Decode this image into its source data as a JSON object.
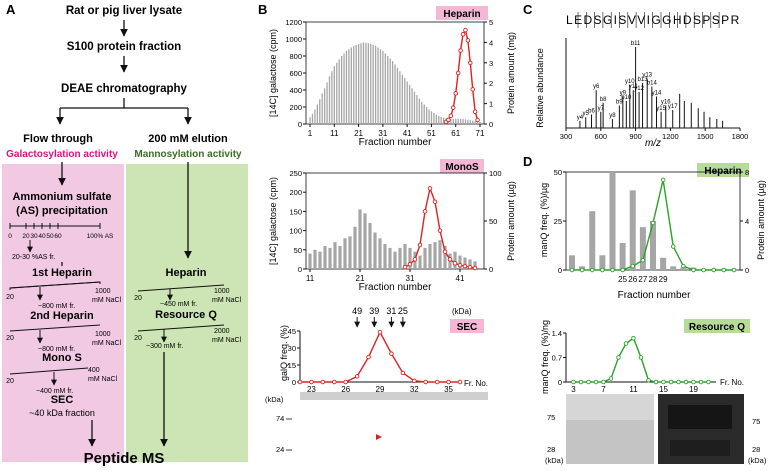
{
  "panel_letters": {
    "a": "A",
    "b": "B",
    "c": "C",
    "d": "D"
  },
  "flow": {
    "step1": "Rat or pig liver lysate",
    "step2": "S100 protein fraction",
    "step3": "DEAE chromatography",
    "branch_left": "Flow through",
    "branch_right": "200 mM elution",
    "activity_left": "Galactosylation activity",
    "activity_right": "Mannosylation activity",
    "as_title_1": "Ammonium sulfate",
    "as_title_2": "(AS) precipitation",
    "as_ticks": [
      "0",
      "20",
      "30",
      "40",
      "50",
      "60",
      "100% AS"
    ],
    "as_fraction": "20-30 %AS fr.",
    "heparin1": "1st Heparin",
    "heparin2": "2nd Heparin",
    "monos": "Mono S",
    "sec": "SEC",
    "sec_fraction": "~40 kDa fraction",
    "heparin_right": "Heparin",
    "resourceq": "Resource Q",
    "grad_start": "20",
    "grad_end_1000": "1000",
    "grad_end_400": "400",
    "grad_end_2000": "2000",
    "grad_unit": "mM NaCl",
    "elute_800": "~800 mM fr.",
    "elute_400": "~400 mM fr.",
    "elute_450": "~450 mM fr.",
    "elute_300": "~300 mM fr.",
    "final": "Peptide MS"
  },
  "panel_b": {
    "heparin_tag": "Heparin",
    "monos_tag": "MonoS",
    "sec_tag": "SEC",
    "ylabel_left": "[14C] galactose (cpm)",
    "ylabel_right_mg": "Protein amount (mg)",
    "ylabel_right_ug": "Protein amount (µg)",
    "xlabel": "Fraction number",
    "sec_ylabel": "galQ freq. (%)",
    "fr_no": "Fr. No.",
    "kda_unit": "(kDa)",
    "gel_kda": "(kDa)",
    "gel_markers": [
      "74",
      "24"
    ]
  },
  "panel_c": {
    "sequence": "LEDSGISVVIGGHDSPSPR",
    "ylabel": "Relative abundance",
    "xlabel": "m/z",
    "x_ticks": [
      "300",
      "600",
      "900",
      "1200",
      "1500",
      "1800"
    ]
  },
  "panel_d": {
    "heparin_tag": "Heparin",
    "resourceq_tag": "Resource Q",
    "ylabel_top": "manQ freq. (%)/µg",
    "ylabel_right": "Protein amount (µg)",
    "xlabel": "Fraction number",
    "ylabel_bottom": "manQ freq. (%)/ng",
    "fr_no": "Fr. No.",
    "gel_left_markers": [
      "75",
      "28"
    ],
    "gel_right_markers": [
      "75",
      "28"
    ],
    "kda_unit": "(kDa)"
  },
  "colors": {
    "pink_box": "#f2c9e3",
    "green_box": "#cde4b5",
    "galactosylation": "#e0107a",
    "mannosylation": "#3b6e22",
    "red_line": "#e02020",
    "green_line": "#2aa32a",
    "bars": "#a6a6a6",
    "tag_pink": "#f4b8d6",
    "tag_green": "#b7dc9a"
  },
  "chart_data": [
    {
      "type": "bar",
      "id": "b-heparin",
      "title": "Heparin",
      "xlabel": "Fraction number",
      "ylabel": "[14C] galactose (cpm)",
      "y2label": "Protein amount (mg)",
      "x_ticks": [
        1,
        11,
        21,
        31,
        41,
        51,
        61,
        71
      ],
      "xlim": [
        1,
        71
      ],
      "ylim": [
        0,
        1200
      ],
      "y_ticks": [
        0,
        200,
        400,
        600,
        800,
        1000,
        1200
      ],
      "y2lim": [
        0,
        5
      ],
      "y2_ticks": [
        0,
        1,
        2,
        3,
        4,
        5
      ],
      "series": [
        {
          "name": "[14C] galactose",
          "kind": "bar",
          "x": [
            1,
            2,
            3,
            4,
            5,
            6,
            7,
            8,
            9,
            10,
            11,
            12,
            13,
            14,
            15,
            16,
            17,
            18,
            19,
            20,
            21,
            22,
            23,
            24,
            25,
            26,
            27,
            28,
            29,
            30,
            31,
            32,
            33,
            34,
            35,
            36,
            37,
            38,
            39,
            40,
            41,
            42,
            43,
            44,
            45,
            46,
            47,
            48,
            49,
            50,
            51,
            52,
            53,
            54,
            55,
            56,
            57,
            58,
            59,
            60,
            61,
            62,
            63,
            64,
            65,
            66,
            67,
            68,
            69,
            70,
            71
          ],
          "values": [
            80,
            120,
            170,
            230,
            290,
            360,
            420,
            490,
            560,
            620,
            680,
            720,
            760,
            800,
            830,
            860,
            880,
            900,
            920,
            930,
            940,
            950,
            960,
            955,
            950,
            945,
            930,
            920,
            900,
            880,
            860,
            830,
            800,
            770,
            740,
            700,
            660,
            620,
            580,
            540,
            500,
            460,
            420,
            380,
            340,
            300,
            260,
            230,
            200,
            170,
            150,
            130,
            110,
            95,
            85,
            75,
            70,
            65,
            60,
            58,
            60,
            62,
            60,
            58,
            55,
            50,
            45,
            40,
            35,
            30,
            25
          ]
        },
        {
          "name": "Protein amount",
          "kind": "line",
          "axis": "y2",
          "x": [
            57,
            58,
            59,
            60,
            61,
            62,
            63,
            64,
            65,
            66,
            67,
            68,
            69,
            70
          ],
          "values": [
            0.1,
            0.2,
            0.4,
            0.8,
            1.5,
            2.5,
            3.6,
            4.4,
            4.6,
            4.1,
            3.0,
            1.7,
            0.6,
            0.2
          ]
        }
      ]
    },
    {
      "type": "bar",
      "id": "b-monos",
      "title": "MonoS",
      "xlabel": "Fraction number",
      "ylabel": "[14C] galactose (cpm)",
      "y2label": "Protein amount (µg)",
      "x_ticks": [
        11,
        21,
        31,
        41
      ],
      "xlim": [
        11,
        45
      ],
      "ylim": [
        0,
        250
      ],
      "y_ticks": [
        0,
        50,
        100,
        150,
        200,
        250
      ],
      "y2lim": [
        0,
        100
      ],
      "y2_ticks": [
        0,
        50,
        100
      ],
      "series": [
        {
          "name": "[14C] galactose",
          "kind": "bar",
          "x": [
            11,
            12,
            13,
            14,
            15,
            16,
            17,
            18,
            19,
            20,
            21,
            22,
            23,
            24,
            25,
            26,
            27,
            28,
            29,
            30,
            31,
            32,
            33,
            34,
            35,
            36,
            37,
            38,
            39,
            40,
            41,
            42,
            43,
            44
          ],
          "values": [
            40,
            50,
            45,
            60,
            55,
            70,
            60,
            80,
            85,
            110,
            155,
            145,
            120,
            95,
            80,
            65,
            55,
            45,
            55,
            65,
            55,
            45,
            35,
            55,
            65,
            70,
            75,
            60,
            40,
            45,
            35,
            30,
            25,
            20
          ]
        },
        {
          "name": "Protein amount",
          "kind": "line",
          "axis": "y2",
          "x": [
            30,
            31,
            32,
            33,
            34,
            35,
            36,
            37,
            38,
            39,
            40,
            41,
            42,
            43,
            44
          ],
          "values": [
            2,
            5,
            10,
            25,
            60,
            84,
            70,
            40,
            18,
            10,
            6,
            4,
            3,
            2,
            1
          ]
        }
      ]
    },
    {
      "type": "line",
      "id": "b-sec",
      "title": "SEC",
      "ylabel": "galQ freq. (%)",
      "xlabel": "Fr. No.",
      "x_ticks": [
        23,
        26,
        29,
        32,
        35
      ],
      "xlim": [
        22,
        36
      ],
      "ylim": [
        0,
        45
      ],
      "y_ticks": [
        0,
        15,
        30,
        45
      ],
      "markers_kda": [
        {
          "label": "49",
          "x": 27
        },
        {
          "label": "39",
          "x": 28.5
        },
        {
          "label": "31",
          "x": 30
        },
        {
          "label": "25",
          "x": 31
        }
      ],
      "series": [
        {
          "name": "galQ",
          "x": [
            22,
            23,
            24,
            25,
            26,
            27,
            28,
            29,
            30,
            31,
            32,
            33,
            34,
            35,
            36
          ],
          "values": [
            0,
            0,
            0,
            0,
            0,
            5,
            22,
            44,
            25,
            8,
            1,
            0,
            0,
            0,
            0
          ]
        }
      ]
    },
    {
      "type": "bar",
      "id": "c-ms",
      "title": "",
      "xlabel": "m/z",
      "ylabel": "Relative abundance",
      "x_ticks": [
        300,
        600,
        900,
        1200,
        1500,
        1800
      ],
      "xlim": [
        300,
        1800
      ],
      "ylim": [
        0,
        100
      ],
      "series": [
        {
          "name": "peaks",
          "x": [
            420,
            470,
            520,
            560,
            600,
            620,
            700,
            760,
            790,
            820,
            850,
            880,
            900,
            930,
            960,
            1000,
            1040,
            1080,
            1120,
            1160,
            1220,
            1280,
            1320,
            1380,
            1440,
            1490,
            1540,
            1600,
            1650
          ],
          "values": [
            8,
            12,
            15,
            42,
            18,
            28,
            10,
            25,
            35,
            30,
            48,
            42,
            90,
            40,
            50,
            55,
            46,
            35,
            18,
            25,
            20,
            38,
            30,
            28,
            22,
            18,
            12,
            10,
            8
          ]
        }
      ],
      "labels": [
        "y4",
        "y5",
        "b6",
        "y6",
        "y7",
        "b8",
        "y8",
        "b9",
        "y9",
        "b10",
        "y10",
        "y11",
        "b11",
        "y12",
        "b13",
        "y13",
        "b14",
        "y14",
        "y15",
        "y16",
        "y17"
      ]
    },
    {
      "type": "bar",
      "id": "d-heparin",
      "title": "Heparin",
      "xlabel": "Fraction number",
      "ylabel": "manQ freq. (%)/µg",
      "y2label": "Protein amount (µg)",
      "x_ticks": [
        25,
        26,
        27,
        28,
        29
      ],
      "ylim": [
        0,
        50
      ],
      "y_ticks": [
        0,
        25,
        50
      ],
      "y2lim": [
        0,
        8
      ],
      "y2_ticks": [
        0,
        4,
        8
      ],
      "categories": [
        20,
        21,
        22,
        23,
        24,
        25,
        26,
        27,
        28,
        29,
        30,
        31,
        32,
        33,
        34,
        35,
        36
      ],
      "series": [
        {
          "name": "Protein amount",
          "kind": "bar",
          "axis": "y2",
          "values": [
            1.2,
            0.3,
            4.8,
            1.2,
            8.0,
            2.2,
            6.5,
            3.5,
            4.0,
            1.0,
            0.3,
            0.2,
            0.2,
            0.1,
            0.1,
            0.1,
            0.1
          ]
        },
        {
          "name": "manQ freq.",
          "kind": "line",
          "values": [
            0,
            0,
            0,
            0,
            0,
            0,
            2,
            5,
            24,
            46,
            12,
            2,
            0,
            0,
            0,
            0,
            0
          ]
        }
      ]
    },
    {
      "type": "line",
      "id": "d-resourceq",
      "title": "Resource Q",
      "xlabel": "Fr. No.",
      "ylabel": "manQ freq. (%)/ng",
      "x_ticks": [
        3,
        7,
        11,
        15,
        19
      ],
      "xlim": [
        2,
        22
      ],
      "ylim": [
        0,
        1.4
      ],
      "y_ticks": [
        0,
        0.7,
        1.4
      ],
      "series": [
        {
          "name": "manQ",
          "x": [
            3,
            4,
            5,
            6,
            7,
            8,
            9,
            10,
            11,
            12,
            13,
            14,
            15,
            16,
            17,
            18,
            19,
            20,
            21
          ],
          "values": [
            0,
            0,
            0,
            0,
            0,
            0.1,
            0.7,
            1.1,
            1.25,
            0.7,
            0.05,
            0,
            0,
            0,
            0,
            0,
            0,
            0,
            0
          ]
        }
      ]
    }
  ]
}
